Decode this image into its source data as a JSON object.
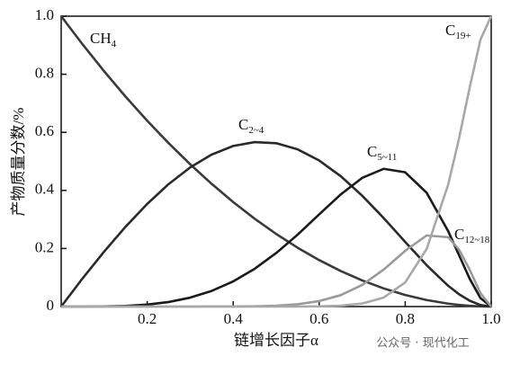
{
  "chart_data": {
    "type": "line",
    "ylabel": "产物质量分数/%",
    "xlabel": "链增长因子α",
    "watermark": "公众号 · 现代化工",
    "x": [
      0,
      0.05,
      0.1,
      0.15,
      0.2,
      0.25,
      0.3,
      0.35,
      0.4,
      0.45,
      0.5,
      0.55,
      0.6,
      0.65,
      0.7,
      0.75,
      0.8,
      0.85,
      0.9,
      0.925,
      0.95,
      0.975,
      1
    ],
    "series": [
      {
        "name": "CH4",
        "color": "#3a3a3a",
        "values": [
          1,
          0.9025,
          0.81,
          0.7225,
          0.64,
          0.5625,
          0.49,
          0.4225,
          0.36,
          0.3025,
          0.25,
          0.2025,
          0.16,
          0.1225,
          0.09,
          0.0625,
          0.04,
          0.0225,
          0.01,
          0.0056,
          0.0025,
          0.0006,
          0
        ]
      },
      {
        "name": "C2~4",
        "color": "#2a2a2a",
        "values": [
          0,
          0.0975,
          0.1895,
          0.2753,
          0.3533,
          0.4219,
          0.4792,
          0.5235,
          0.553,
          0.5663,
          0.5625,
          0.5413,
          0.503,
          0.4491,
          0.3818,
          0.3047,
          0.2227,
          0.1423,
          0.0715,
          0.0427,
          0.0201,
          0.0053,
          0
        ]
      },
      {
        "name": "C5~11",
        "color": "#1a1a1a",
        "values": [
          0,
          0,
          0.0005,
          0.0022,
          0.0067,
          0.0156,
          0.0308,
          0.0539,
          0.0867,
          0.1301,
          0.1843,
          0.2479,
          0.3174,
          0.386,
          0.4432,
          0.4744,
          0.4624,
          0.3918,
          0.2595,
          0.1776,
          0.0958,
          0.029,
          0
        ]
      },
      {
        "name": "C12~18",
        "color": "#9a9a9a",
        "values": [
          0,
          0,
          0,
          0,
          0,
          0,
          0,
          0.0001,
          0.0003,
          0.0011,
          0.0031,
          0.0081,
          0.0188,
          0.0393,
          0.0746,
          0.1274,
          0.192,
          0.245,
          0.2388,
          0.1966,
          0.1269,
          0.0458,
          0
        ]
      },
      {
        "name": "C19+",
        "color": "#a8a8a8",
        "values": [
          0,
          0,
          0,
          0,
          0,
          0,
          0,
          0,
          0,
          0,
          0,
          0.0002,
          0.0008,
          0.0031,
          0.0104,
          0.031,
          0.0829,
          0.1985,
          0.4203,
          0.5776,
          0.7547,
          0.9193,
          1
        ]
      }
    ],
    "xlim": [
      0,
      1
    ],
    "ylim": [
      0,
      1
    ],
    "xticks": [
      0.2,
      0.4,
      0.6,
      0.8,
      {
        "value": 1,
        "label": "1.0"
      }
    ],
    "yticks": [
      0,
      0.2,
      0.4,
      0.6,
      0.8,
      {
        "value": 1,
        "label": "1.0"
      }
    ]
  }
}
